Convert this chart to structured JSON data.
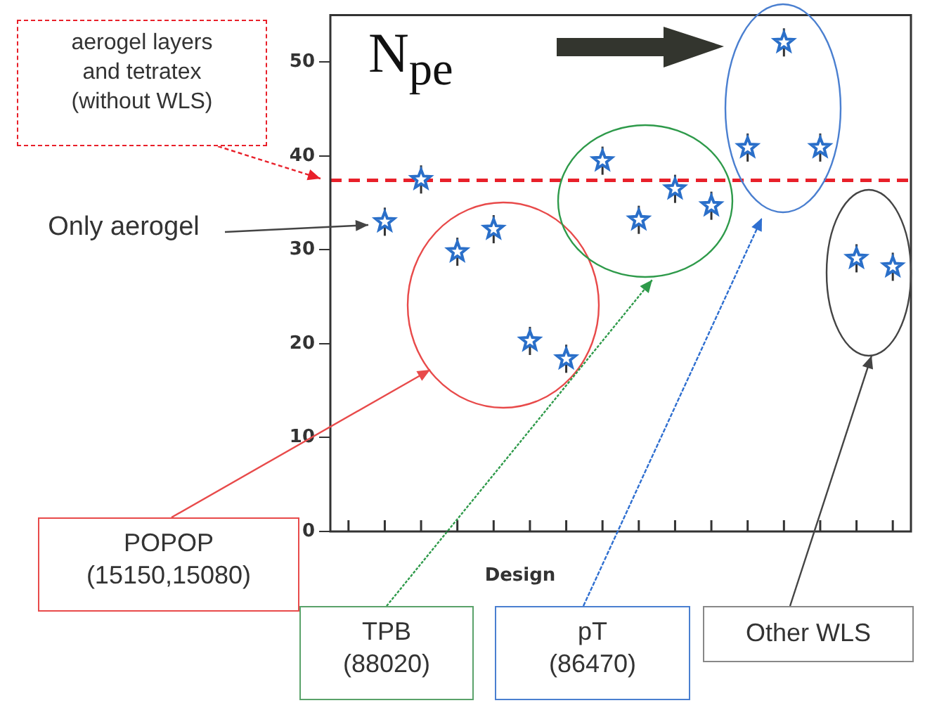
{
  "chart_data": {
    "type": "scatter",
    "ylabel": "N$_{pe}$",
    "xlabel": "Design",
    "categories": [
      null,
      null,
      null,
      null,
      null,
      null,
      null,
      null,
      null,
      null,
      null,
      null,
      null,
      null,
      null,
      null
    ],
    "series": [
      {
        "color": "#2a6fc9",
        "values": [
          null,
          33,
          37.5,
          29.8,
          32.2,
          20.3,
          18.4,
          39.5,
          33.2,
          36.5,
          34.7,
          40.9,
          52.1,
          40.9,
          29.1,
          28.2
        ],
        "errors": [
          null,
          1.5,
          1.5,
          1.5,
          1.5,
          1.5,
          1.5,
          1.5,
          1.5,
          1.5,
          1.5,
          1.5,
          1.5,
          1.5,
          1.5,
          1.5
        ]
      }
    ],
    "ylim": [
      0,
      55
    ],
    "yticks": [
      0,
      10,
      20,
      30,
      40,
      50
    ],
    "marker": "star",
    "grid": false,
    "legend": false,
    "tick_labels": "y",
    "ref_lines": [
      {
        "axis": "y",
        "value": 37.4,
        "color": "#e8202a",
        "line_style": "dashed"
      }
    ],
    "annotations": [
      "aerogel layers\nand tetratex\n(without WLS)",
      "Only aerogel",
      "POPOP\n(15150,15080)",
      "TPB\n(88020)",
      "pT\n(86470)",
      "Other WLS"
    ]
  }
}
